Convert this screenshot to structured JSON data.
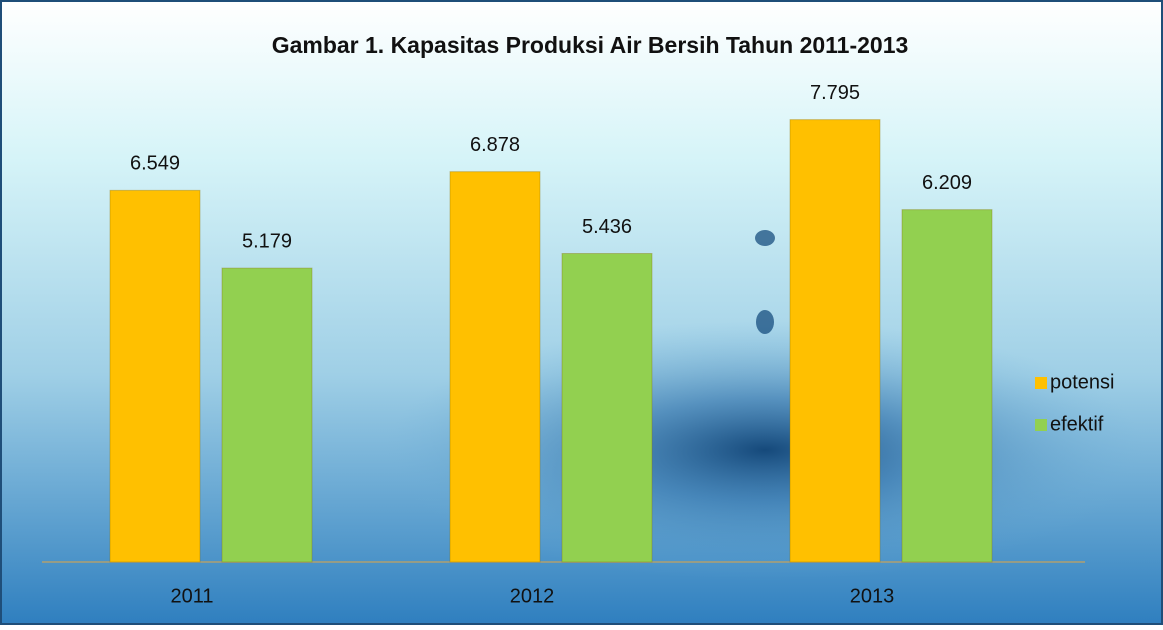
{
  "chart_data": {
    "type": "bar",
    "title": "Gambar 1. Kapasitas Produksi Air Bersih Tahun 2011-2013",
    "categories": [
      "2011",
      "2012",
      "2013"
    ],
    "series": [
      {
        "name": "potensi",
        "color": "#ffc000",
        "values": [
          6.549,
          6.878,
          7.795
        ]
      },
      {
        "name": "efektif",
        "color": "#92d050",
        "values": [
          5.179,
          5.436,
          6.209
        ]
      }
    ],
    "ylim": [
      0,
      8
    ],
    "legend": "right"
  }
}
